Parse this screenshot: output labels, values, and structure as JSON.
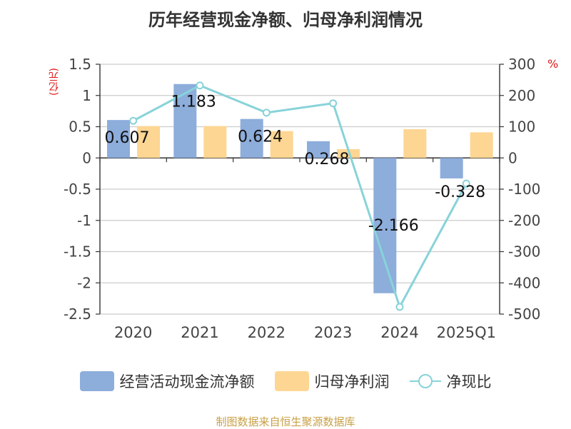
{
  "title": "历年经营现金净额、归母净利润情况",
  "source": "制图数据来自恒生聚源数据库",
  "colors": {
    "cash": "#8daddb",
    "profit": "#fdd693",
    "ratio": "#88d3d9",
    "unit": "#e01818",
    "source": "#c8a047"
  },
  "chart_data": {
    "type": "bar",
    "title": "历年经营现金净额、归母净利润情况",
    "categories": [
      "2020",
      "2021",
      "2022",
      "2023",
      "2024",
      "2025Q1"
    ],
    "left_unit": "(亿元)",
    "right_unit": "%",
    "ylim_left": [
      -2.5,
      1.5
    ],
    "ylim_right": [
      -500,
      300
    ],
    "yticks_left": [
      "1.5",
      "1",
      "0.5",
      "0",
      "-0.5",
      "-1",
      "-1.5",
      "-2",
      "-2.5"
    ],
    "yticks_right": [
      "300",
      "200",
      "100",
      "0",
      "-100",
      "-200",
      "-300",
      "-400",
      "-500"
    ],
    "grid": true,
    "legend_position": "bottom",
    "series": [
      {
        "name": "经营活动现金流净额",
        "type": "bar",
        "axis": "left",
        "values": [
          0.607,
          1.183,
          0.624,
          0.268,
          -2.166,
          -0.328
        ],
        "labels": [
          "0.607",
          "1.183",
          "0.624",
          "0.268",
          "-2.166",
          "-0.328"
        ]
      },
      {
        "name": "归母净利润",
        "type": "bar",
        "axis": "left",
        "values": [
          0.51,
          0.51,
          0.43,
          0.14,
          0.46,
          0.41
        ]
      },
      {
        "name": "净现比",
        "type": "line",
        "axis": "right",
        "values": [
          119,
          232,
          145,
          175,
          -477,
          -82
        ]
      }
    ]
  }
}
